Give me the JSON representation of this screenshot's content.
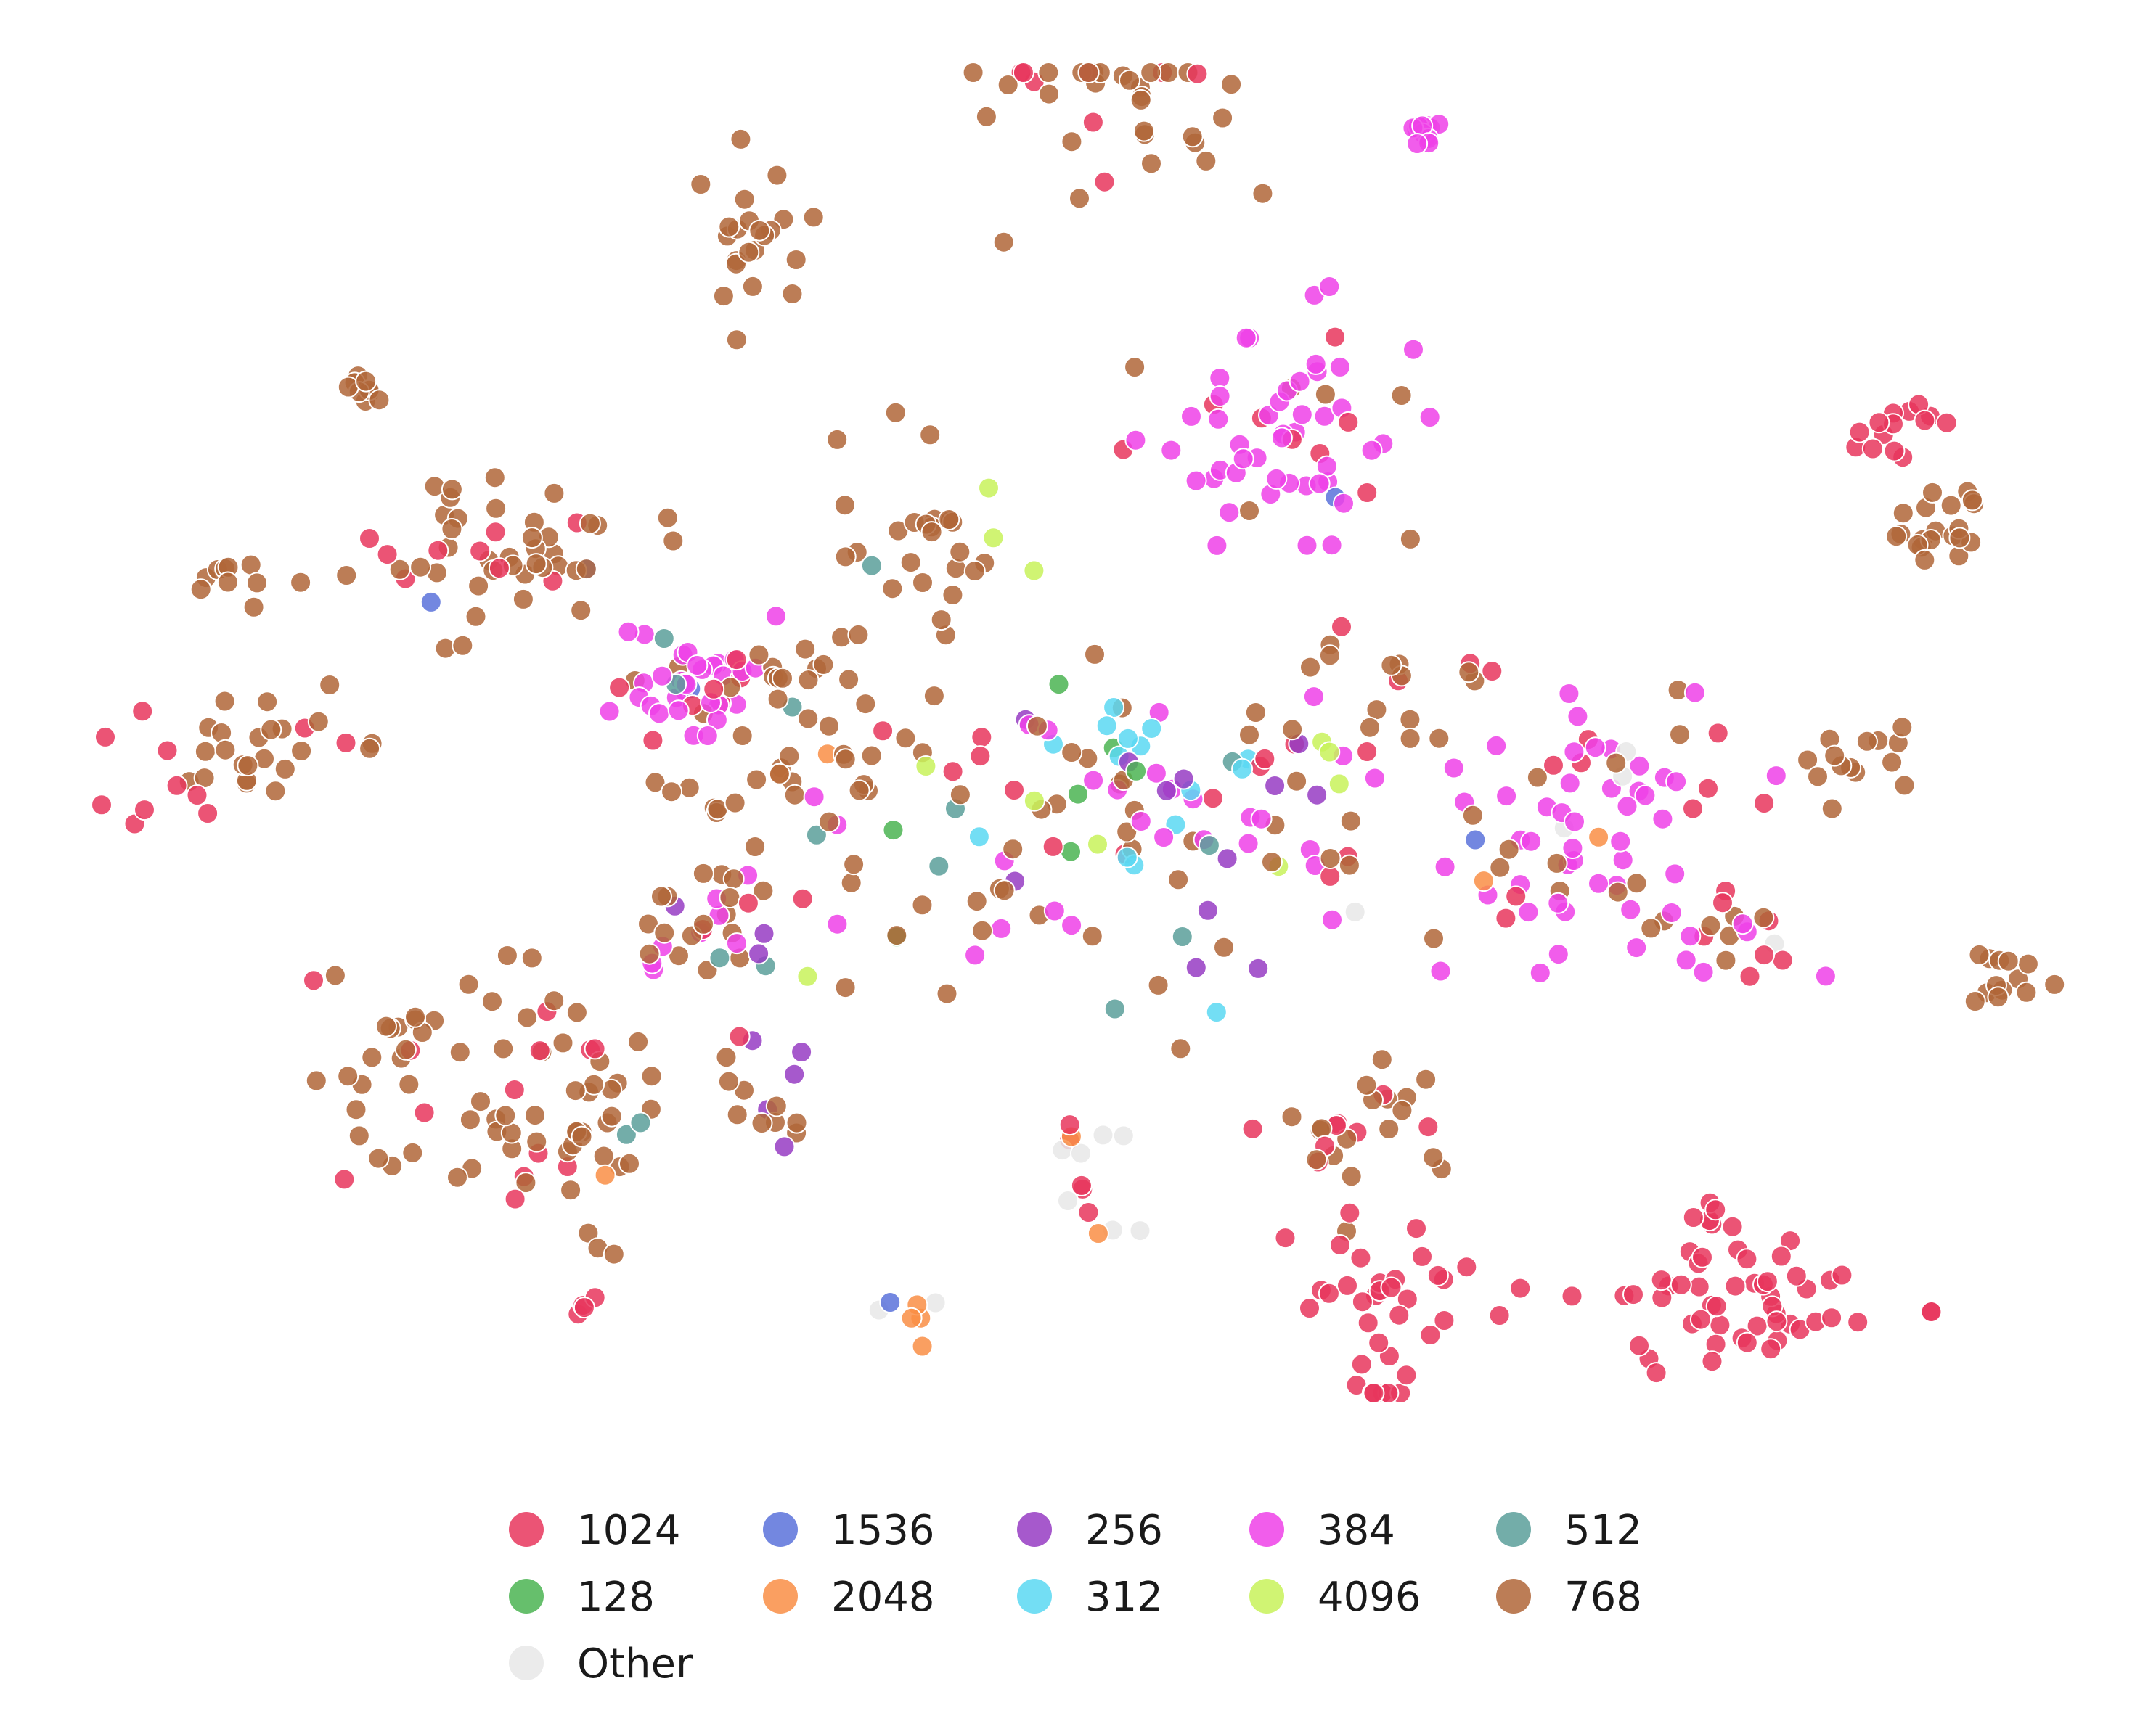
{
  "chart_data": {
    "type": "scatter",
    "title": "",
    "xlabel": "",
    "ylabel": "",
    "axes_visible": false,
    "grid": false,
    "legend_position": "bottom-center",
    "series": [
      {
        "name": "1024",
        "color": "#e8365d"
      },
      {
        "name": "128",
        "color": "#4bb452"
      },
      {
        "name": "1536",
        "color": "#5a72db"
      },
      {
        "name": "2048",
        "color": "#f98e45"
      },
      {
        "name": "256",
        "color": "#973cc3"
      },
      {
        "name": "312",
        "color": "#5ad8f2"
      },
      {
        "name": "384",
        "color": "#ee41e8"
      },
      {
        "name": "4096",
        "color": "#c8f25a"
      },
      {
        "name": "512",
        "color": "#5b9f9a"
      },
      {
        "name": "768",
        "color": "#b06638"
      },
      {
        "name": "Other",
        "color": "#e8e8e8"
      }
    ]
  }
}
